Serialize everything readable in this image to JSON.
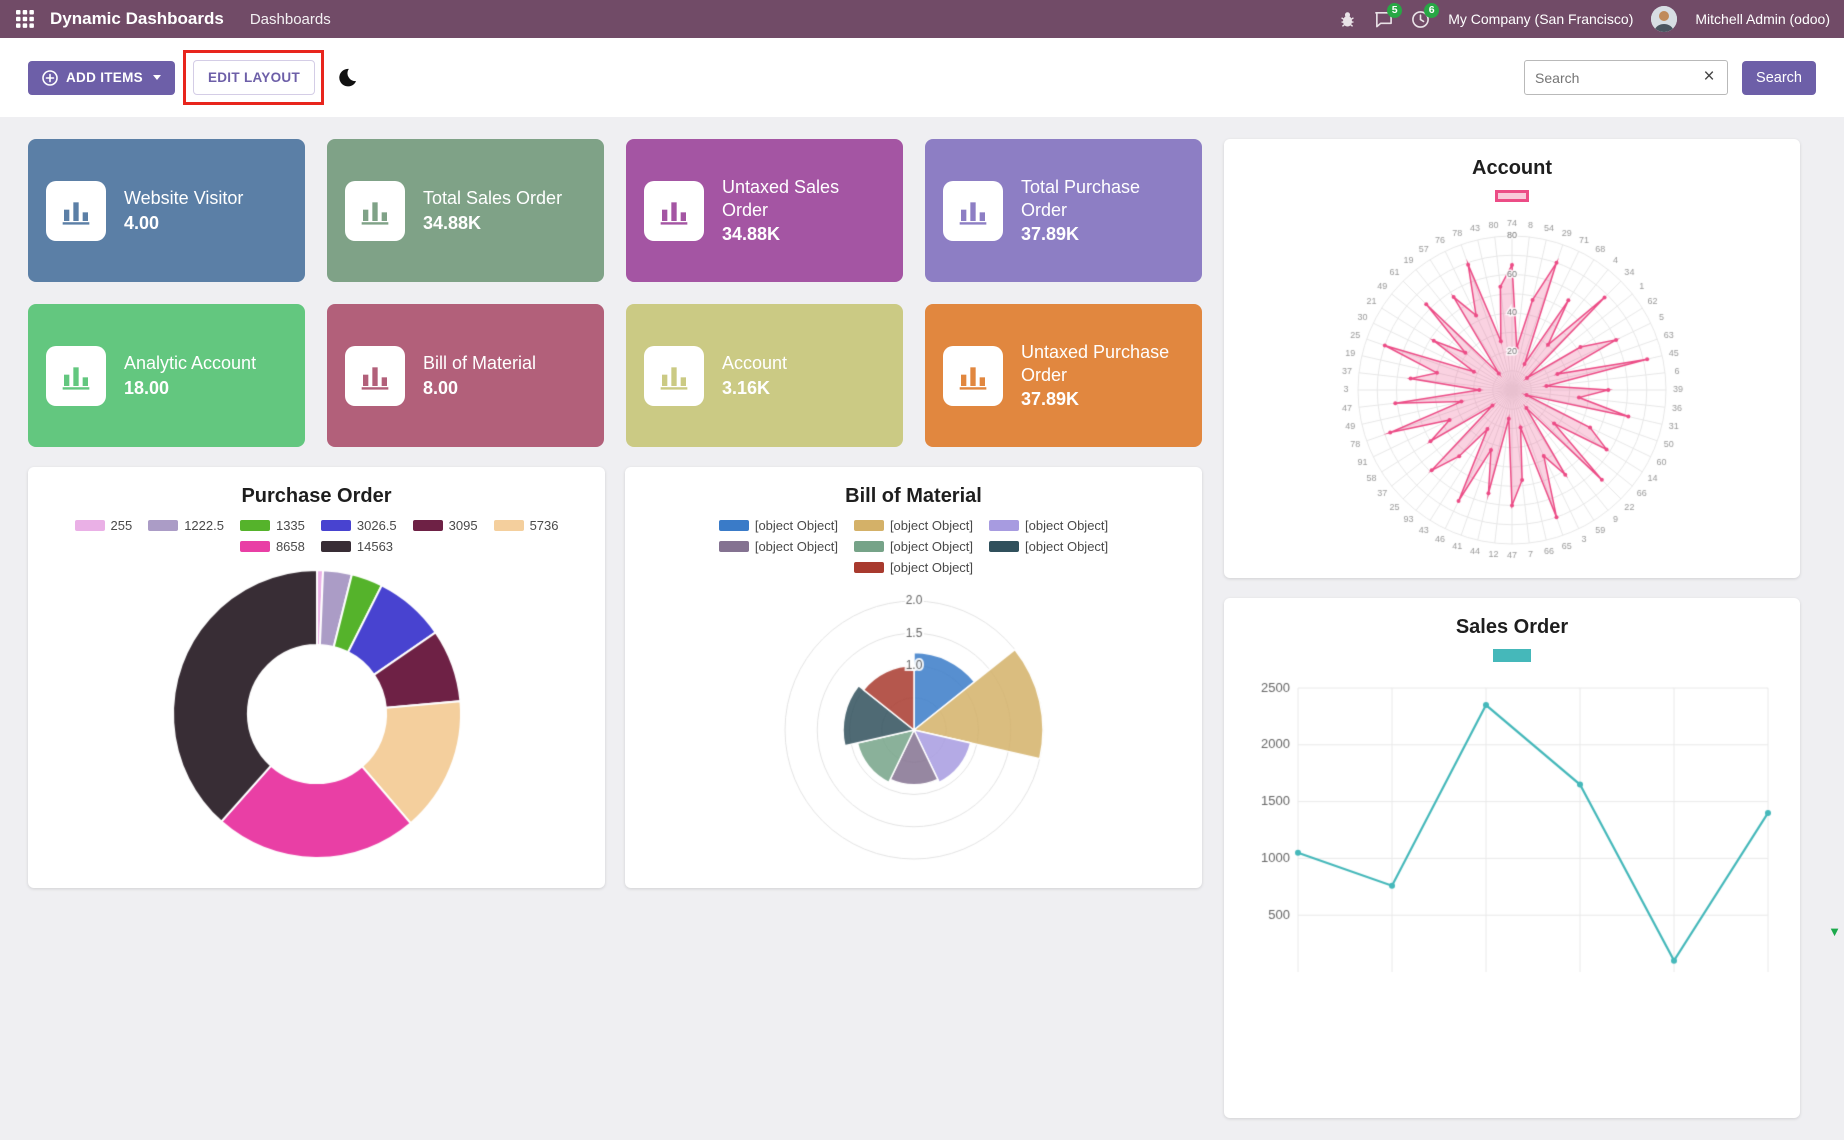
{
  "colors": {
    "navbar_bg": "#714B67",
    "primary_button": "#6d5fa8",
    "badge": "#28a745",
    "annotation": "#e8251d"
  },
  "navbar": {
    "app_title": "Dynamic Dashboards",
    "menu_dashboards": "Dashboards",
    "messages_badge": "5",
    "activities_badge": "6",
    "company": "My Company (San Francisco)",
    "user": "Mitchell Admin (odoo)"
  },
  "toolbar": {
    "add_items_label": "ADD ITEMS",
    "edit_layout_label": "EDIT LAYOUT",
    "search_placeholder": "Search",
    "search_button_label": "Search"
  },
  "tiles": [
    {
      "title": "Website Visitor",
      "value": "4.00",
      "color": "#5b7fa6"
    },
    {
      "title": "Total Sales Order",
      "value": "34.88K",
      "color": "#7fa287"
    },
    {
      "title": "Untaxed Sales Order",
      "value": "34.88K",
      "color": "#a455a3"
    },
    {
      "title": "Total Purchase Order",
      "value": "37.89K",
      "color": "#8d7ec4"
    },
    {
      "title": "Analytic Account",
      "value": "18.00",
      "color": "#63c77f"
    },
    {
      "title": "Bill of Material",
      "value": "8.00",
      "color": "#b2607a"
    },
    {
      "title": "Account",
      "value": "3.16K",
      "color": "#cbca84"
    },
    {
      "title": "Untaxed Purchase Order",
      "value": "37.89K",
      "color": "#e1873f"
    }
  ],
  "chart_data": [
    {
      "id": "purchase_order",
      "type": "pie",
      "doughnut": true,
      "title": "Purchase Order",
      "legend_position": "top",
      "labels": [
        "255",
        "1222.5",
        "1335",
        "3026.5",
        "3095",
        "5736",
        "8658",
        "14563"
      ],
      "values": [
        255,
        1222.5,
        1335,
        3026.5,
        3095,
        5736,
        8658,
        14563
      ],
      "colors": [
        "#eab0e6",
        "#ab9cc6",
        "#55b32b",
        "#4843d0",
        "#6e2145",
        "#f4cf9d",
        "#e93fa5",
        "#382d35"
      ]
    },
    {
      "id": "bill_of_material",
      "type": "polar_area",
      "title": "Bill of Material",
      "legend_position": "top",
      "labels": [
        "[object Object]",
        "[object Object]",
        "[object Object]",
        "[object Object]",
        "[object Object]",
        "[object Object]",
        "[object Object]"
      ],
      "values": [
        1.2,
        2,
        0.9,
        0.85,
        0.9,
        1.1,
        1
      ],
      "colors": [
        "#3a7bc8",
        "#d4b168",
        "#a79be0",
        "#847291",
        "#76a388",
        "#30505c",
        "#a83a2e"
      ],
      "ticks": [
        0.5,
        1,
        1.5,
        2
      ],
      "tick_labels": [
        "1.0",
        "1.5",
        "2.0"
      ]
    },
    {
      "id": "account",
      "type": "radar",
      "title": "Account",
      "legend_position": "top",
      "color": "#ec4c86",
      "max": 80,
      "labels": [
        "74",
        "8",
        "54",
        "29",
        "71",
        "68",
        "4",
        "34",
        "1",
        "62",
        "5",
        "63",
        "45",
        "6",
        "39",
        "36",
        "31",
        "50",
        "60",
        "14",
        "66",
        "22",
        "9",
        "59",
        "3",
        "65",
        "66",
        "7",
        "47",
        "12",
        "44",
        "41",
        "46",
        "43",
        "93",
        "25",
        "37",
        "58",
        "91",
        "78",
        "49",
        "47",
        "3",
        "37",
        "19",
        "25",
        "30",
        "21",
        "49",
        "61",
        "19",
        "57",
        "76",
        "78",
        "43",
        "80"
      ],
      "values": [
        65,
        22,
        48,
        70,
        15,
        55,
        30,
        68,
        10,
        42,
        60,
        25,
        72,
        18,
        50,
        35,
        62,
        8,
        45,
        58,
        28,
        66,
        12,
        52,
        38,
        70,
        20,
        47,
        60,
        15,
        55,
        33,
        64,
        24,
        44,
        59,
        13,
        50,
        36,
        67,
        27,
        61,
        17,
        53,
        40,
        70,
        22,
        48,
        31,
        63,
        11,
        57,
        43,
        69,
        26,
        54
      ]
    },
    {
      "id": "sales_order",
      "type": "line",
      "title": "Sales Order",
      "legend_position": "top",
      "color": "#45b8ba",
      "values": [
        1050,
        760,
        2350,
        1650,
        100,
        1400
      ],
      "y_ticks": [
        500,
        1000,
        1500,
        2000,
        2500
      ],
      "y_min": 0,
      "y_max": 2500,
      "grid": true
    }
  ]
}
